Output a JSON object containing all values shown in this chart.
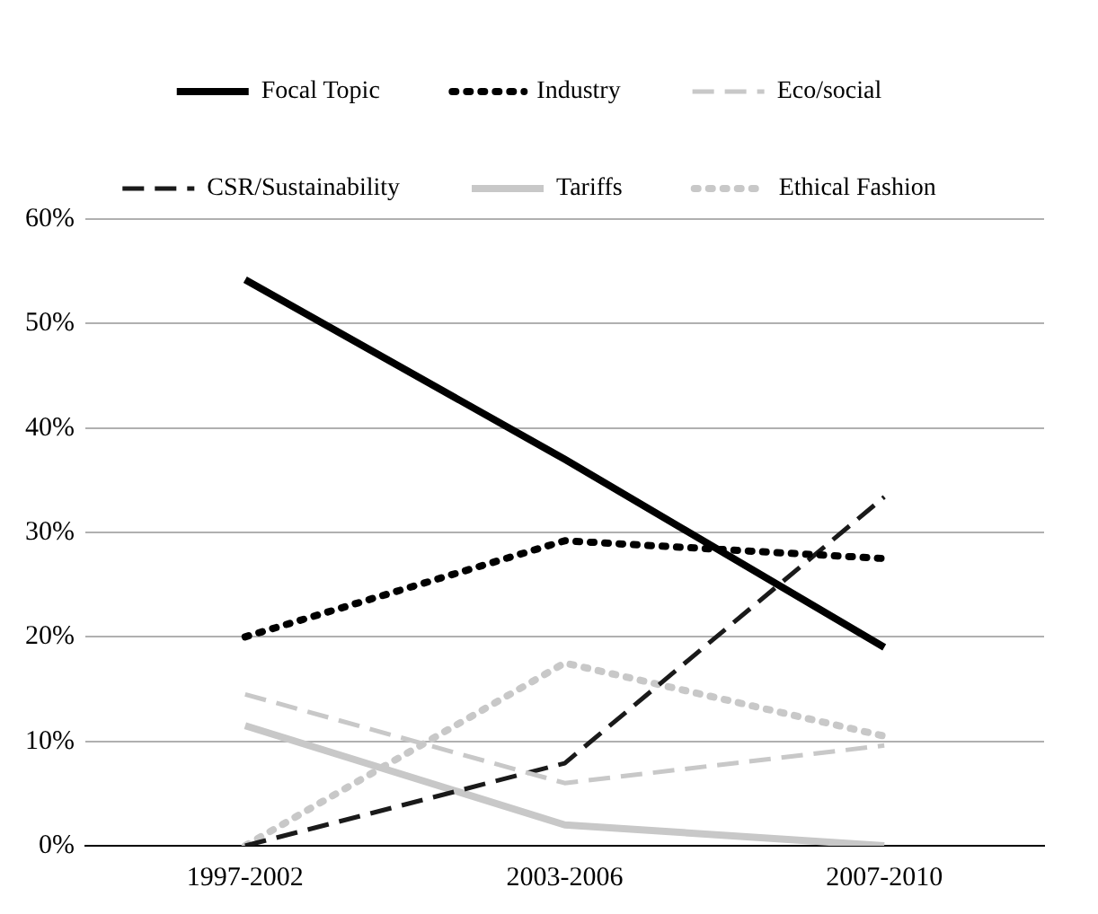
{
  "chart_data": {
    "type": "line",
    "categories": [
      "1997-2002",
      "2003-2006",
      "2007-2010"
    ],
    "series": [
      {
        "name": "Focal Topic",
        "color": "#000000",
        "line_style": "solid",
        "values": [
          54.2,
          37,
          19
        ]
      },
      {
        "name": "Industry",
        "color": "#000000",
        "line_style": "dotted",
        "values": [
          20,
          29.2,
          27.5
        ]
      },
      {
        "name": "Eco/social",
        "color": "#c8c8c8",
        "line_style": "dashed",
        "values": [
          14.5,
          6,
          9.6
        ]
      },
      {
        "name": "CSR/Sustainability",
        "color": "#1a1a1a",
        "line_style": "dashed",
        "values": [
          0,
          7.9,
          33.4
        ]
      },
      {
        "name": "Tariffs",
        "color": "#c8c8c8",
        "line_style": "solid",
        "values": [
          11.5,
          2,
          0
        ]
      },
      {
        "name": "Ethical Fashion",
        "color": "#c8c8c8",
        "line_style": "dotted",
        "values": [
          0,
          17.5,
          10.5
        ]
      }
    ],
    "ylim": [
      0,
      60
    ],
    "yticks": [
      {
        "value": 0,
        "label": "0%"
      },
      {
        "value": 10,
        "label": "10%"
      },
      {
        "value": 20,
        "label": "20%"
      },
      {
        "value": 30,
        "label": "30%"
      },
      {
        "value": 40,
        "label": "40%"
      },
      {
        "value": 50,
        "label": "50%"
      },
      {
        "value": 60,
        "label": "60%"
      }
    ],
    "grid": "y",
    "legend": "top",
    "marker": "none"
  }
}
